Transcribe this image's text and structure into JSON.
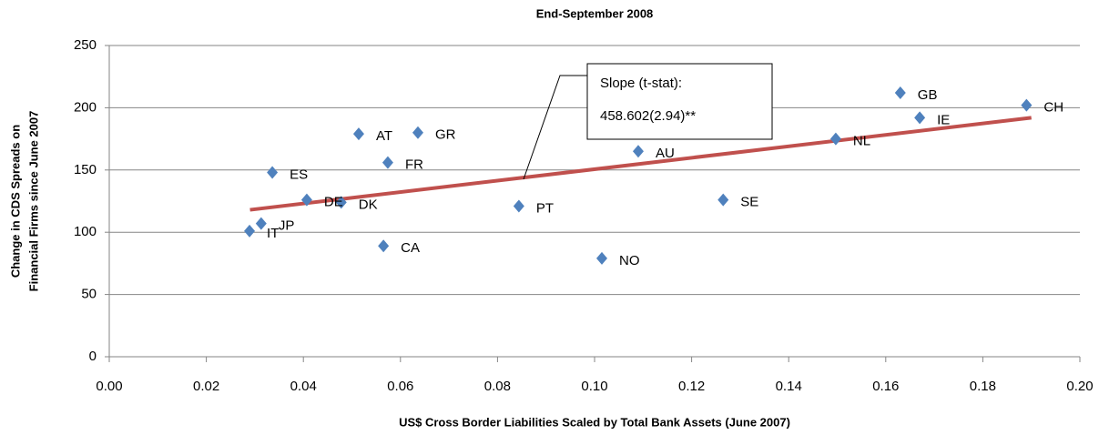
{
  "chart_data": {
    "type": "scatter",
    "title": "End-September 2008",
    "x_label": "US$ Cross Border Liabilities Scaled by Total Bank Assets (June 2007)",
    "y_label": [
      "Change in CDS Spreads on",
      "Financial Firms since June 2007"
    ],
    "labels": [
      "IT",
      "JP",
      "ES",
      "DE",
      "DK",
      "AT",
      "CA",
      "FR",
      "GR",
      "PT",
      "NO",
      "AU",
      "SE",
      "NL",
      "GB",
      "IE",
      "CH"
    ],
    "x": [
      0.0289,
      0.0313,
      0.0336,
      0.0407,
      0.0478,
      0.0514,
      0.0565,
      0.0574,
      0.0636,
      0.0844,
      0.1015,
      0.109,
      0.1265,
      0.1497,
      0.163,
      0.167,
      0.189
    ],
    "values": [
      101,
      107,
      148,
      126,
      124,
      179,
      89,
      156,
      180,
      121,
      79,
      165,
      126,
      175,
      212,
      192,
      202
    ],
    "color": "#4f81bd",
    "trendline": {
      "x": [
        0.029,
        0.19
      ],
      "values": [
        118,
        192
      ],
      "color": "#c0504d"
    },
    "annotation": [
      "Slope (t-stat):",
      "458.602(2.94)**"
    ],
    "xlim": [
      0,
      0.2
    ],
    "ylim": [
      0,
      250
    ],
    "xticks": [
      {
        "value": 0,
        "label": "0.00"
      },
      {
        "value": 0.02,
        "label": "0.02"
      },
      {
        "value": 0.04,
        "label": "0.04"
      },
      {
        "value": 0.06,
        "label": "0.06"
      },
      {
        "value": 0.08,
        "label": "0.08"
      },
      {
        "value": 0.1,
        "label": "0.10"
      },
      {
        "value": 0.12,
        "label": "0.12"
      },
      {
        "value": 0.14,
        "label": "0.14"
      },
      {
        "value": 0.16,
        "label": "0.16"
      },
      {
        "value": 0.18,
        "label": "0.18"
      },
      {
        "value": 0.2,
        "label": "0.20"
      }
    ],
    "yticks": [
      0,
      50,
      100,
      150,
      200,
      250
    ],
    "grid": true
  }
}
